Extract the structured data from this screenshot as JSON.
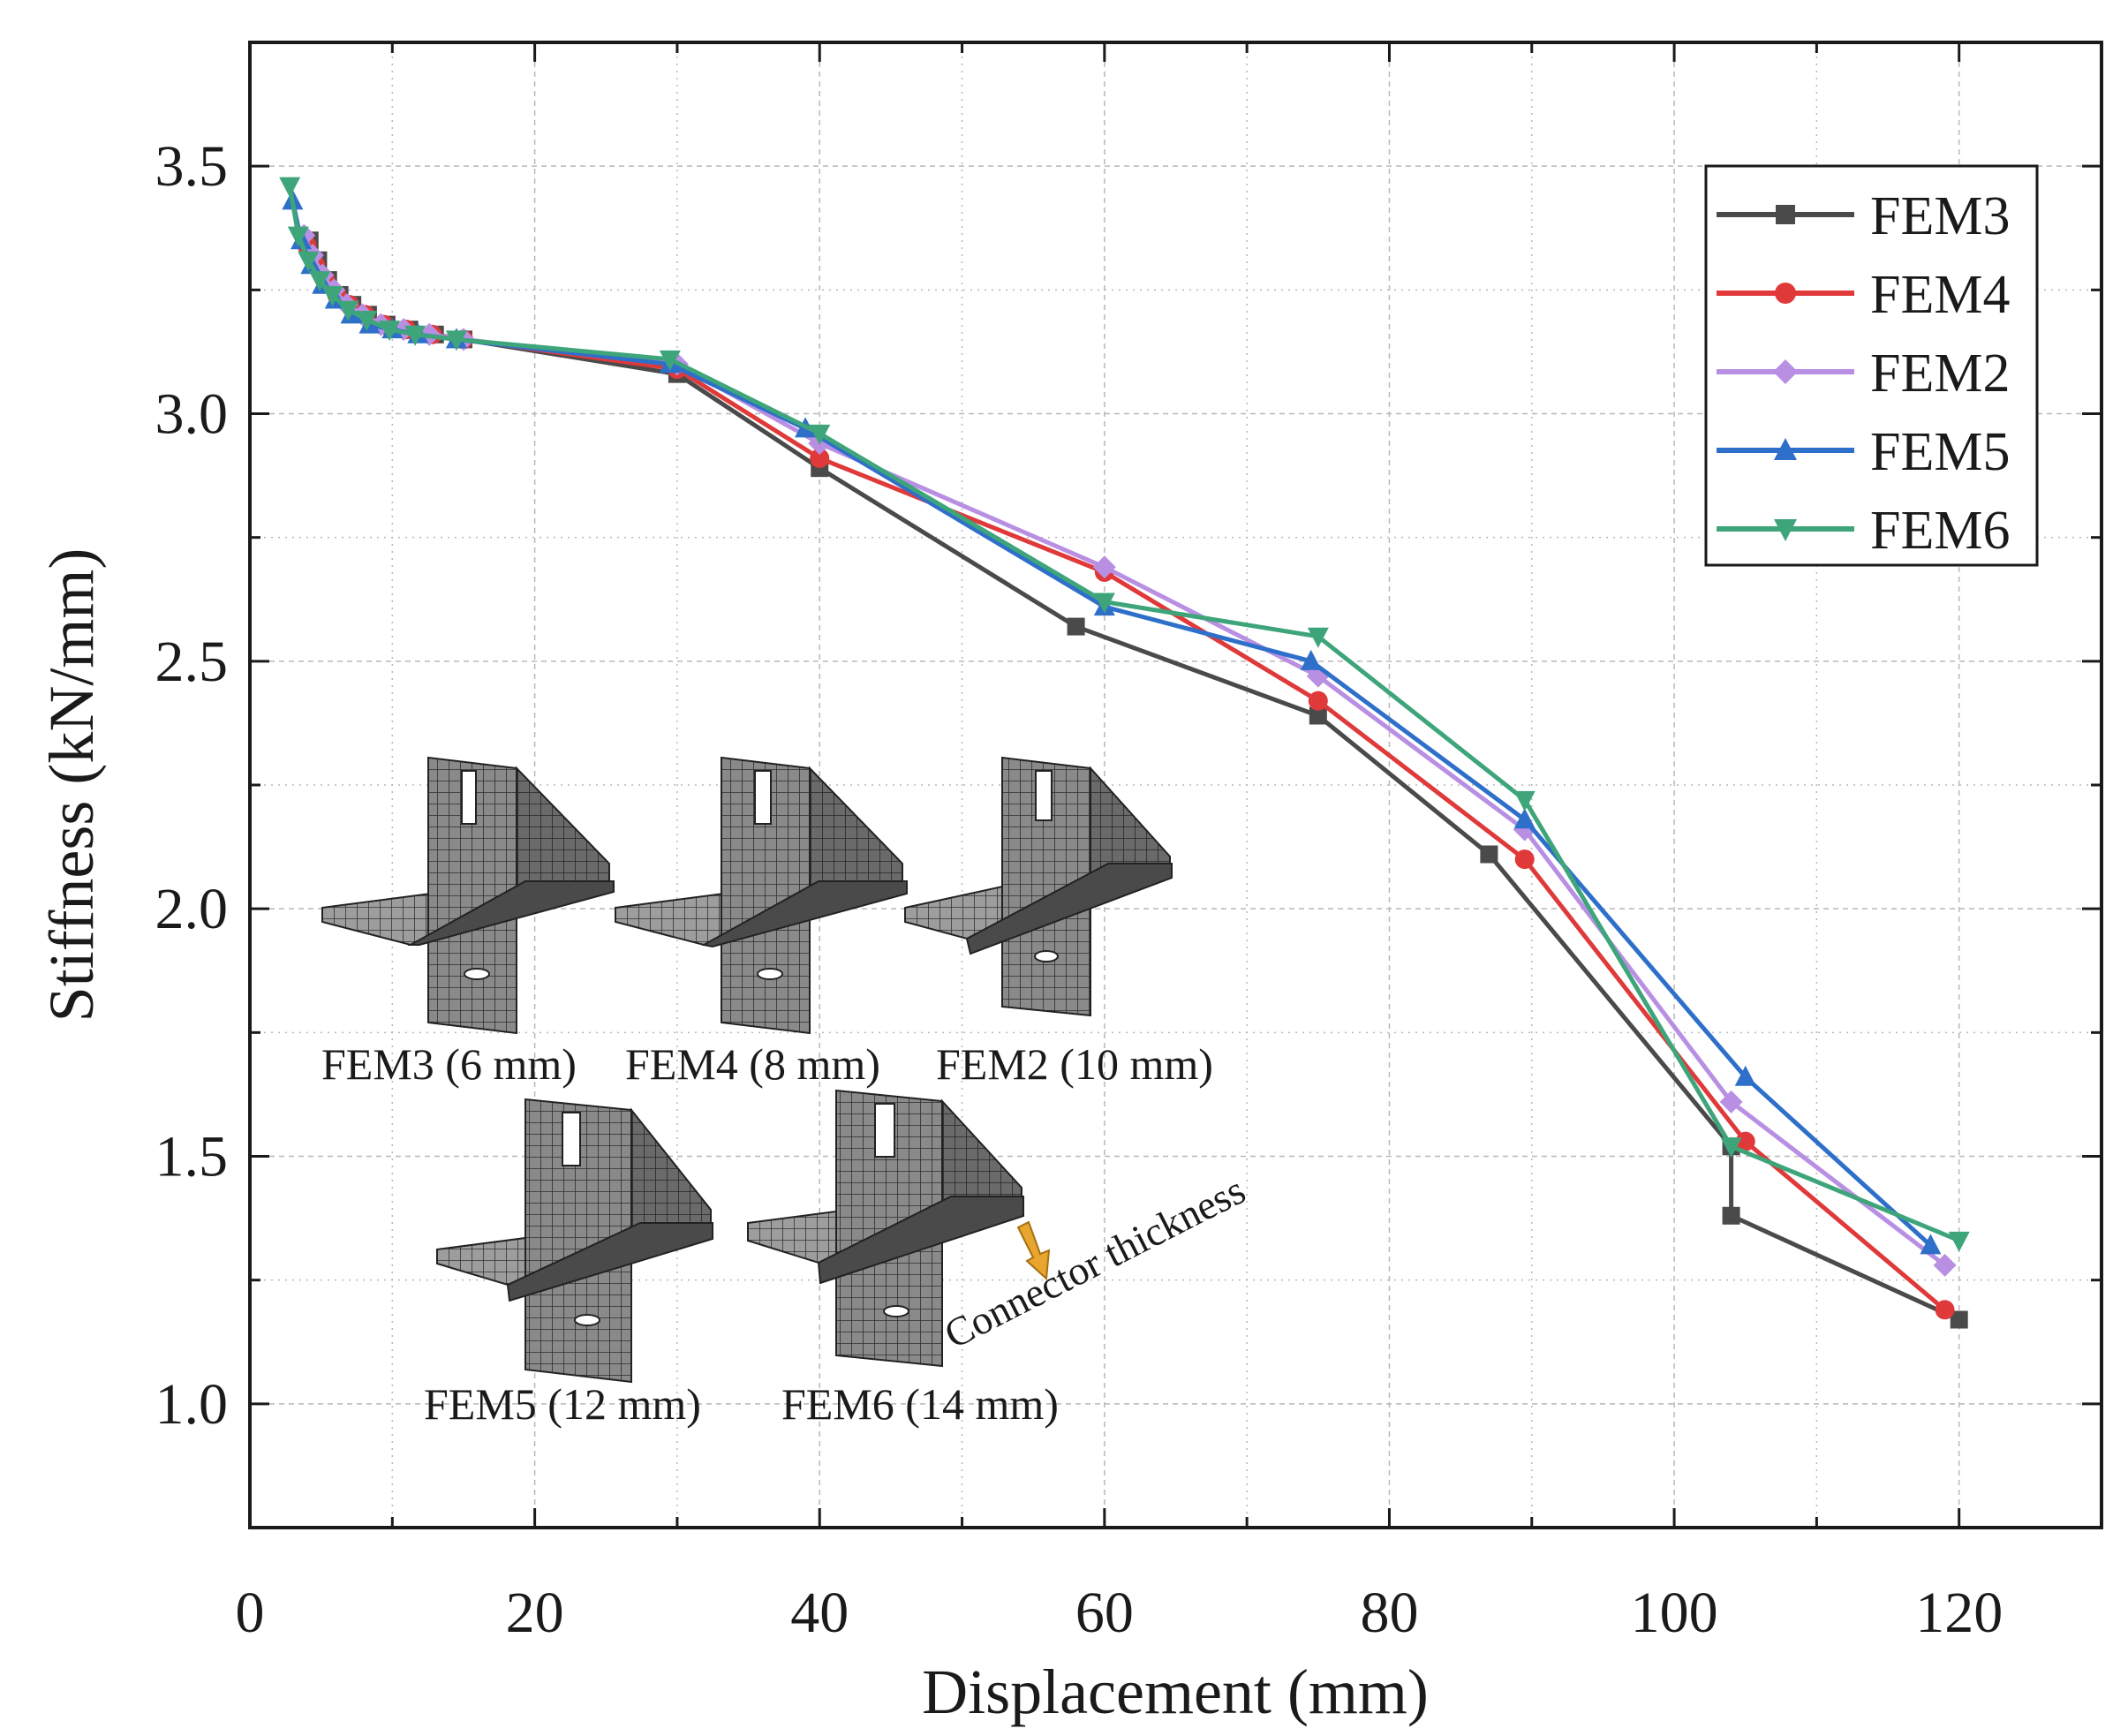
{
  "chart_data": {
    "type": "line",
    "title": "",
    "xlabel": "Displacement (mm)",
    "ylabel": "Stiffness (kN/mm)",
    "xlim": [
      0,
      130
    ],
    "ylim": [
      0.75,
      3.75
    ],
    "xticks": [
      0,
      20,
      40,
      60,
      80,
      100,
      120
    ],
    "yticks": [
      1.0,
      1.5,
      2.0,
      2.5,
      3.0,
      3.5
    ],
    "xtick_labels": [
      "0",
      "20",
      "40",
      "60",
      "80",
      "100",
      "120"
    ],
    "ytick_labels": [
      "1.0",
      "1.5",
      "2.0",
      "2.5",
      "3.0",
      "3.5"
    ],
    "grid": true,
    "legend_position": "top-right",
    "series": [
      {
        "name": "FEM3",
        "color": "#4a4a4a",
        "marker": "square",
        "x": [
          4.2,
          4.8,
          5.5,
          6.3,
          7.2,
          8.3,
          9.6,
          11.2,
          13,
          15,
          30,
          40,
          58,
          75,
          87,
          104,
          104,
          120
        ],
        "y": [
          3.35,
          3.31,
          3.27,
          3.24,
          3.22,
          3.2,
          3.18,
          3.17,
          3.16,
          3.15,
          3.08,
          2.89,
          2.57,
          2.39,
          2.11,
          1.52,
          1.38,
          1.17
        ]
      },
      {
        "name": "FEM4",
        "color": "#e0393a",
        "marker": "circle",
        "x": [
          4.0,
          4.6,
          5.3,
          6.1,
          7.0,
          8.1,
          9.4,
          11,
          12.8,
          15,
          30,
          40,
          60,
          75,
          89.5,
          105,
          119
        ],
        "y": [
          3.34,
          3.3,
          3.27,
          3.24,
          3.22,
          3.2,
          3.18,
          3.17,
          3.16,
          3.15,
          3.09,
          2.91,
          2.68,
          2.42,
          2.1,
          1.53,
          1.19
        ]
      },
      {
        "name": "FEM2",
        "color": "#b88fe3",
        "marker": "diamond",
        "x": [
          3.8,
          4.4,
          5.1,
          5.9,
          6.8,
          7.9,
          9.2,
          10.8,
          12.6,
          15,
          30,
          40,
          60,
          75,
          89.5,
          104,
          119
        ],
        "y": [
          3.36,
          3.32,
          3.28,
          3.25,
          3.22,
          3.2,
          3.18,
          3.17,
          3.16,
          3.15,
          3.1,
          2.94,
          2.69,
          2.47,
          2.16,
          1.61,
          1.28
        ]
      },
      {
        "name": "FEM5",
        "color": "#2e6fc9",
        "marker": "triangle-up",
        "x": [
          3,
          3.6,
          4.3,
          5.1,
          6,
          7.1,
          8.4,
          10,
          11.8,
          14.5,
          29.5,
          39,
          60,
          74.5,
          89.5,
          105,
          118
        ],
        "y": [
          3.43,
          3.35,
          3.3,
          3.26,
          3.23,
          3.2,
          3.18,
          3.17,
          3.16,
          3.15,
          3.1,
          2.97,
          2.61,
          2.5,
          2.18,
          1.66,
          1.32
        ]
      },
      {
        "name": "FEM6",
        "color": "#3ea57b",
        "marker": "triangle-down",
        "x": [
          2.8,
          3.4,
          4.1,
          4.9,
          5.8,
          6.9,
          8.2,
          9.8,
          11.6,
          14.5,
          29.5,
          40,
          60,
          75,
          89.5,
          104,
          120
        ],
        "y": [
          3.46,
          3.36,
          3.31,
          3.27,
          3.24,
          3.21,
          3.19,
          3.17,
          3.16,
          3.15,
          3.11,
          2.96,
          2.62,
          2.55,
          2.22,
          1.52,
          1.33
        ]
      }
    ],
    "annotations": {
      "insets": [
        {
          "label": "FEM3 (6 mm)"
        },
        {
          "label": "FEM4 (8 mm)"
        },
        {
          "label": "FEM2 (10 mm)"
        },
        {
          "label": "FEM5 (12 mm)"
        },
        {
          "label": "FEM6 (14 mm)"
        }
      ],
      "arrow_label": "Connector thickness",
      "arrow_color": "#e8a630",
      "mesh_color": "#7a7a7a"
    }
  }
}
